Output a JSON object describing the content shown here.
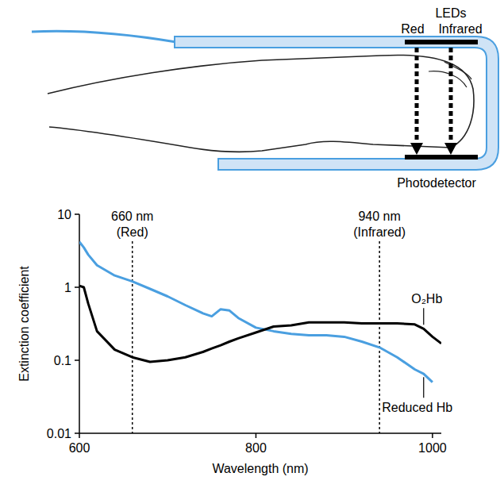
{
  "diagram": {
    "leds_label": "LEDs",
    "led_labels": [
      "Red",
      "Infrared"
    ],
    "detector_label": "Photodetector"
  },
  "chart_data": {
    "type": "line",
    "log": "y",
    "x_label": "Wavelength (nm)",
    "y_label": "Extinction coefficient",
    "x": [
      600,
      605,
      610,
      620,
      640,
      660,
      680,
      700,
      720,
      740,
      750,
      760,
      770,
      780,
      800,
      820,
      840,
      860,
      880,
      900,
      920,
      940,
      960,
      980,
      990,
      1000,
      1010
    ],
    "series": [
      {
        "name": "Reduced Hb",
        "color": "#4a9fe0",
        "values": [
          4.2,
          3.5,
          2.8,
          2.0,
          1.45,
          1.2,
          0.95,
          0.75,
          0.57,
          0.44,
          0.4,
          0.5,
          0.48,
          0.38,
          0.28,
          0.25,
          0.23,
          0.22,
          0.22,
          0.21,
          0.18,
          0.15,
          0.11,
          0.075,
          0.065,
          0.05,
          null
        ]
      },
      {
        "name": "O₂Hb",
        "color": "#000000",
        "values": [
          1.05,
          1.0,
          0.6,
          0.25,
          0.14,
          0.11,
          0.095,
          0.1,
          0.11,
          0.13,
          0.145,
          0.16,
          0.18,
          0.2,
          0.24,
          0.29,
          0.3,
          0.33,
          0.33,
          0.33,
          0.32,
          0.32,
          0.32,
          0.31,
          0.27,
          0.21,
          0.17
        ]
      }
    ],
    "annotations": [
      {
        "x": 660,
        "lines": [
          "660 nm",
          "(Red)"
        ]
      },
      {
        "x": 940,
        "lines": [
          "940 nm",
          "(Infrared)"
        ]
      }
    ],
    "xlim": [
      600,
      1010
    ],
    "xticks": [
      600,
      800,
      1000
    ],
    "ylim": [
      0.01,
      10
    ],
    "yticks": [
      0.01,
      0.1,
      1,
      10
    ]
  }
}
